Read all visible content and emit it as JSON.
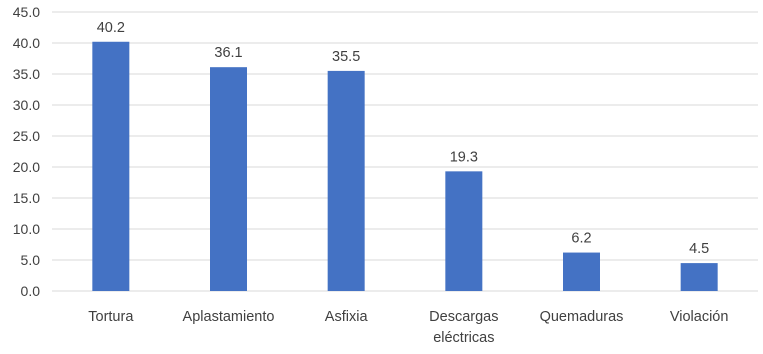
{
  "chart_data": {
    "type": "bar",
    "categories": [
      [
        "Tortura"
      ],
      [
        "Aplastamiento"
      ],
      [
        "Asfixia"
      ],
      [
        "Descargas",
        "eléctricas"
      ],
      [
        "Quemaduras"
      ],
      [
        "Violación"
      ]
    ],
    "values": [
      40.2,
      36.1,
      35.5,
      19.3,
      6.2,
      4.5
    ],
    "data_labels": [
      "40.2",
      "36.1",
      "35.5",
      "19.3",
      "6.2",
      "4.5"
    ],
    "y_ticks": [
      "0.0",
      "5.0",
      "10.0",
      "15.0",
      "20.0",
      "25.0",
      "30.0",
      "35.0",
      "40.0",
      "45.0"
    ],
    "ylim": [
      0,
      45
    ],
    "title": "",
    "xlabel": "",
    "ylabel": "",
    "grid": true,
    "legend": "none",
    "colors": {
      "bar": "#4472C4",
      "grid": "#D9D9D9",
      "text": "#404040"
    }
  }
}
